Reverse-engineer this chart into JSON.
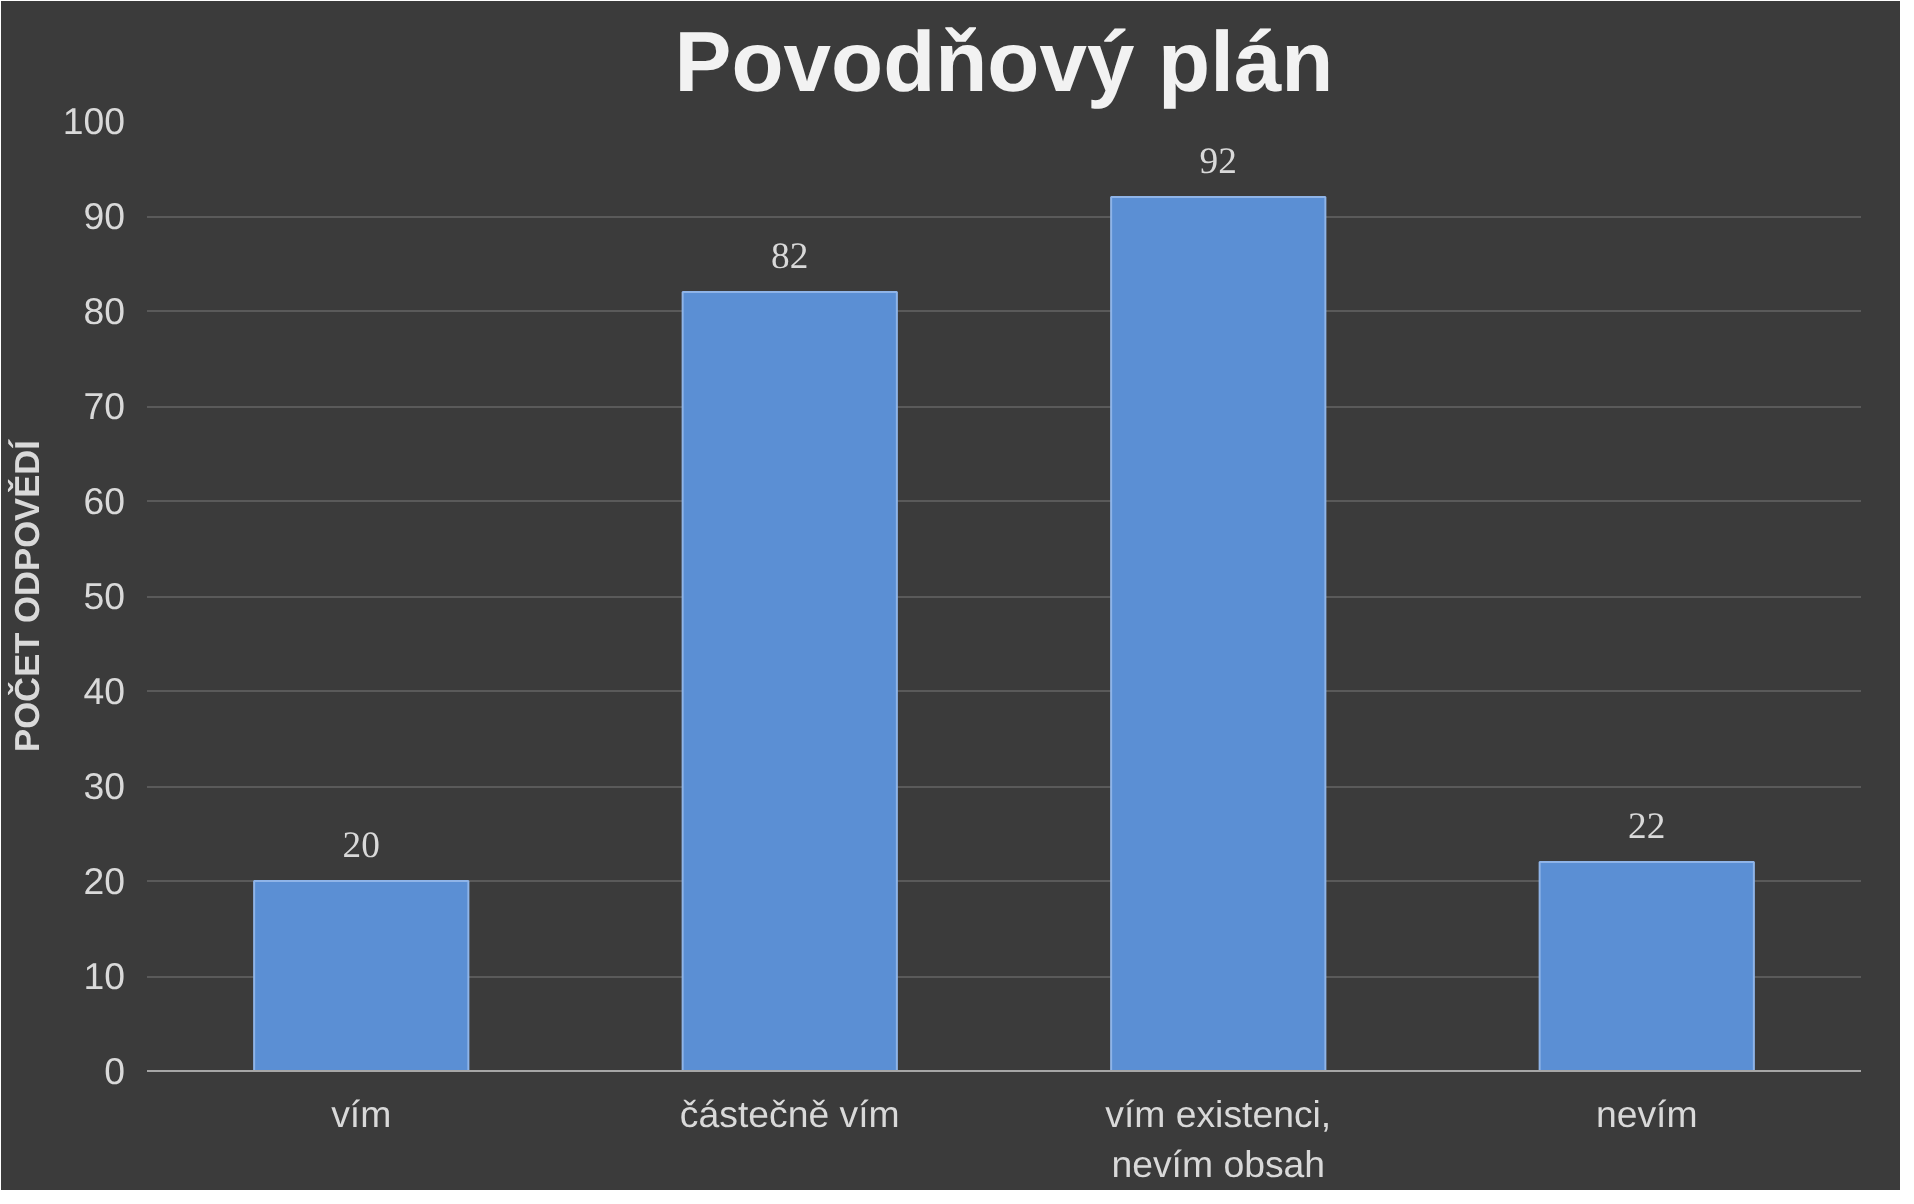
{
  "chart_data": {
    "type": "bar",
    "title": "Povodňový plán",
    "ylabel": "POČET ODPOVĚDÍ",
    "categories": [
      "vím",
      "částečně vím",
      "vím existenci,\nnevím obsah",
      "nevím"
    ],
    "values": [
      20,
      82,
      92,
      22
    ],
    "color": "#5b8fd4",
    "ylim": [
      0,
      100
    ],
    "yticks": [
      0,
      10,
      20,
      30,
      40,
      50,
      60,
      70,
      80,
      90,
      100
    ],
    "grid": "y",
    "data_labels": true
  }
}
